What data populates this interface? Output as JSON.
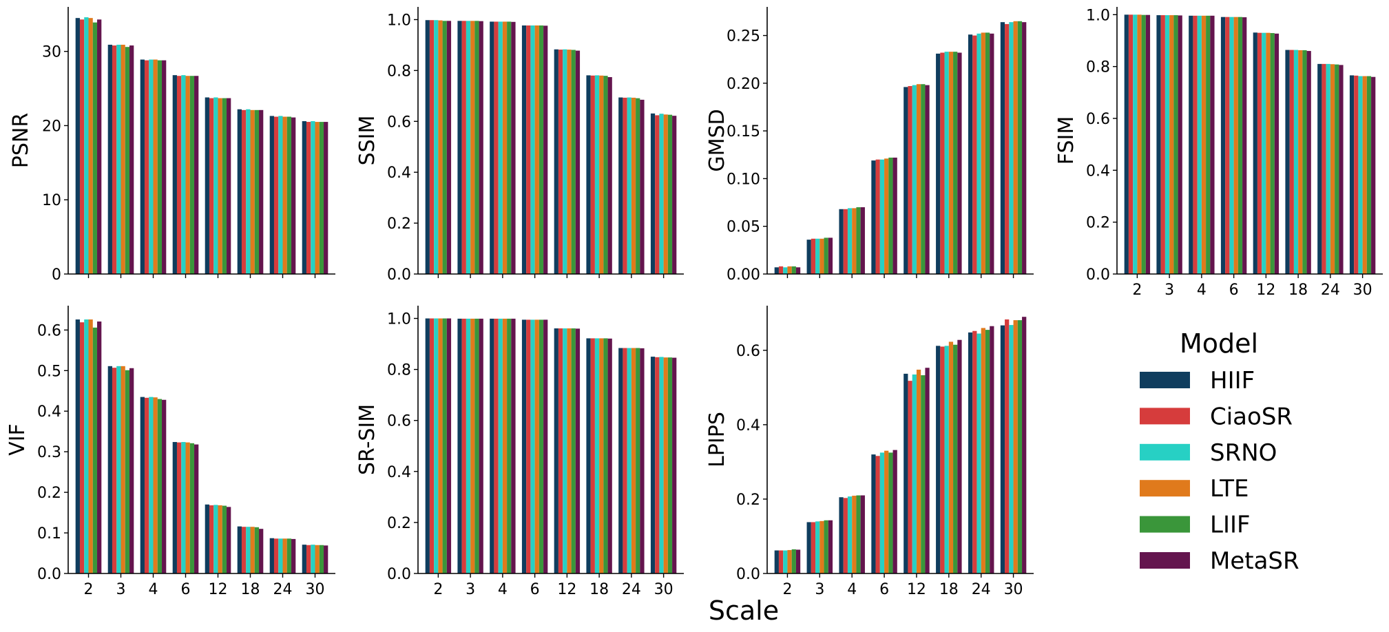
{
  "chart_data": {
    "type": "bar",
    "xlabel": "Scale",
    "categories": [
      "2",
      "3",
      "4",
      "6",
      "12",
      "18",
      "24",
      "30"
    ],
    "legend": {
      "title": "Model",
      "placement": "lower-right",
      "entries": [
        {
          "name": "HIIF",
          "color": "#0f3d5e"
        },
        {
          "name": "CiaoSR",
          "color": "#d63c3c"
        },
        {
          "name": "SRNO",
          "color": "#27d0c4"
        },
        {
          "name": "LTE",
          "color": "#e07a1c"
        },
        {
          "name": "LIIF",
          "color": "#3a963a"
        },
        {
          "name": "MetaSR",
          "color": "#64154e"
        }
      ]
    },
    "panels": [
      {
        "ylabel": "PSNR",
        "ylim": [
          0,
          36
        ],
        "yticks": [
          "0",
          "10",
          "20",
          "30"
        ],
        "ytick_values": [
          0,
          10,
          20,
          30
        ],
        "show_xticklabels": false,
        "series": [
          {
            "name": "HIIF",
            "values": [
              34.5,
              30.9,
              28.9,
              26.8,
              23.8,
              22.2,
              21.3,
              20.6
            ]
          },
          {
            "name": "CiaoSR",
            "values": [
              34.3,
              30.8,
              28.8,
              26.7,
              23.7,
              22.1,
              21.2,
              20.5
            ]
          },
          {
            "name": "SRNO",
            "values": [
              34.6,
              30.9,
              28.9,
              26.8,
              23.8,
              22.2,
              21.3,
              20.6
            ]
          },
          {
            "name": "LTE",
            "values": [
              34.5,
              30.9,
              28.9,
              26.7,
              23.7,
              22.1,
              21.2,
              20.5
            ]
          },
          {
            "name": "LIIF",
            "values": [
              33.9,
              30.6,
              28.8,
              26.7,
              23.7,
              22.1,
              21.2,
              20.5
            ]
          },
          {
            "name": "MetaSR",
            "values": [
              34.3,
              30.8,
              28.8,
              26.7,
              23.7,
              22.1,
              21.1,
              20.5
            ]
          }
        ]
      },
      {
        "ylabel": "SSIM",
        "ylim": [
          0,
          1.05
        ],
        "yticks": [
          "0.0",
          "0.2",
          "0.4",
          "0.6",
          "0.8",
          "1.0"
        ],
        "ytick_values": [
          0,
          0.2,
          0.4,
          0.6,
          0.8,
          1.0
        ],
        "show_xticklabels": false,
        "series": [
          {
            "name": "HIIF",
            "values": [
              0.998,
              0.995,
              0.992,
              0.977,
              0.883,
              0.781,
              0.694,
              0.631
            ]
          },
          {
            "name": "CiaoSR",
            "values": [
              0.998,
              0.995,
              0.992,
              0.977,
              0.882,
              0.78,
              0.693,
              0.624
            ]
          },
          {
            "name": "SRNO",
            "values": [
              0.998,
              0.995,
              0.992,
              0.977,
              0.883,
              0.781,
              0.694,
              0.63
            ]
          },
          {
            "name": "LTE",
            "values": [
              0.997,
              0.995,
              0.992,
              0.977,
              0.882,
              0.78,
              0.693,
              0.627
            ]
          },
          {
            "name": "LIIF",
            "values": [
              0.995,
              0.995,
              0.992,
              0.977,
              0.881,
              0.779,
              0.691,
              0.626
            ]
          },
          {
            "name": "MetaSR",
            "values": [
              0.995,
              0.994,
              0.991,
              0.976,
              0.878,
              0.774,
              0.685,
              0.622
            ]
          }
        ]
      },
      {
        "ylabel": "GMSD",
        "ylim": [
          0,
          0.28
        ],
        "yticks": [
          "0.00",
          "0.05",
          "0.10",
          "0.15",
          "0.20",
          "0.25"
        ],
        "ytick_values": [
          0,
          0.05,
          0.1,
          0.15,
          0.2,
          0.25
        ],
        "show_xticklabels": false,
        "series": [
          {
            "name": "HIIF",
            "values": [
              0.007,
              0.036,
              0.068,
              0.119,
              0.196,
              0.231,
              0.251,
              0.264
            ]
          },
          {
            "name": "CiaoSR",
            "values": [
              0.008,
              0.037,
              0.068,
              0.12,
              0.197,
              0.232,
              0.25,
              0.262
            ]
          },
          {
            "name": "SRNO",
            "values": [
              0.007,
              0.037,
              0.069,
              0.12,
              0.198,
              0.233,
              0.252,
              0.264
            ]
          },
          {
            "name": "LTE",
            "values": [
              0.008,
              0.037,
              0.069,
              0.121,
              0.199,
              0.233,
              0.253,
              0.265
            ]
          },
          {
            "name": "LIIF",
            "values": [
              0.008,
              0.038,
              0.07,
              0.122,
              0.199,
              0.233,
              0.253,
              0.265
            ]
          },
          {
            "name": "MetaSR",
            "values": [
              0.007,
              0.038,
              0.07,
              0.122,
              0.198,
              0.232,
              0.252,
              0.264
            ]
          }
        ]
      },
      {
        "ylabel": "FSIM",
        "ylim": [
          0,
          1.03
        ],
        "yticks": [
          "0.0",
          "0.2",
          "0.4",
          "0.6",
          "0.8",
          "1.0"
        ],
        "ytick_values": [
          0,
          0.2,
          0.4,
          0.6,
          0.8,
          1.0
        ],
        "show_xticklabels": true,
        "series": [
          {
            "name": "HIIF",
            "values": [
              1.0,
              0.998,
              0.996,
              0.991,
              0.931,
              0.864,
              0.81,
              0.766
            ]
          },
          {
            "name": "CiaoSR",
            "values": [
              1.0,
              0.998,
              0.996,
              0.991,
              0.93,
              0.864,
              0.81,
              0.765
            ]
          },
          {
            "name": "SRNO",
            "values": [
              1.0,
              0.998,
              0.996,
              0.991,
              0.93,
              0.864,
              0.81,
              0.763
            ]
          },
          {
            "name": "LTE",
            "values": [
              1.0,
              0.998,
              0.996,
              0.991,
              0.93,
              0.863,
              0.809,
              0.763
            ]
          },
          {
            "name": "LIIF",
            "values": [
              0.999,
              0.998,
              0.996,
              0.991,
              0.929,
              0.863,
              0.808,
              0.763
            ]
          },
          {
            "name": "MetaSR",
            "values": [
              0.999,
              0.997,
              0.996,
              0.99,
              0.927,
              0.86,
              0.806,
              0.76
            ]
          }
        ]
      },
      {
        "ylabel": "VIF",
        "ylim": [
          0,
          0.66
        ],
        "yticks": [
          "0.0",
          "0.1",
          "0.2",
          "0.3",
          "0.4",
          "0.5",
          "0.6"
        ],
        "ytick_values": [
          0,
          0.1,
          0.2,
          0.3,
          0.4,
          0.5,
          0.6
        ],
        "show_xticklabels": true,
        "series": [
          {
            "name": "HIIF",
            "values": [
              0.626,
              0.511,
              0.435,
              0.324,
              0.17,
              0.116,
              0.087,
              0.071
            ]
          },
          {
            "name": "CiaoSR",
            "values": [
              0.619,
              0.507,
              0.433,
              0.323,
              0.168,
              0.115,
              0.086,
              0.07
            ]
          },
          {
            "name": "SRNO",
            "values": [
              0.626,
              0.511,
              0.435,
              0.324,
              0.169,
              0.115,
              0.086,
              0.071
            ]
          },
          {
            "name": "LTE",
            "values": [
              0.626,
              0.511,
              0.434,
              0.323,
              0.168,
              0.115,
              0.086,
              0.07
            ]
          },
          {
            "name": "LIIF",
            "values": [
              0.606,
              0.501,
              0.43,
              0.321,
              0.167,
              0.114,
              0.086,
              0.07
            ]
          },
          {
            "name": "MetaSR",
            "values": [
              0.621,
              0.506,
              0.428,
              0.318,
              0.164,
              0.11,
              0.085,
              0.069
            ]
          }
        ]
      },
      {
        "ylabel": "SR-SIM",
        "ylim": [
          0,
          1.05
        ],
        "yticks": [
          "0.0",
          "0.2",
          "0.4",
          "0.6",
          "0.8",
          "1.0"
        ],
        "ytick_values": [
          0,
          0.2,
          0.4,
          0.6,
          0.8,
          1.0
        ],
        "show_xticklabels": true,
        "series": [
          {
            "name": "HIIF",
            "values": [
              1.0,
              0.999,
              0.999,
              0.995,
              0.961,
              0.922,
              0.884,
              0.85
            ]
          },
          {
            "name": "CiaoSR",
            "values": [
              1.0,
              0.999,
              0.999,
              0.995,
              0.961,
              0.922,
              0.884,
              0.848
            ]
          },
          {
            "name": "SRNO",
            "values": [
              1.0,
              0.999,
              0.999,
              0.995,
              0.961,
              0.922,
              0.884,
              0.849
            ]
          },
          {
            "name": "LTE",
            "values": [
              1.0,
              0.999,
              0.999,
              0.995,
              0.961,
              0.922,
              0.884,
              0.847
            ]
          },
          {
            "name": "LIIF",
            "values": [
              1.0,
              0.999,
              0.999,
              0.995,
              0.961,
              0.922,
              0.884,
              0.847
            ]
          },
          {
            "name": "MetaSR",
            "values": [
              1.0,
              0.999,
              0.999,
              0.995,
              0.96,
              0.921,
              0.883,
              0.846
            ]
          }
        ]
      },
      {
        "ylabel": "LPIPS",
        "ylim": [
          0,
          0.72
        ],
        "yticks": [
          "0.0",
          "0.2",
          "0.4",
          "0.6"
        ],
        "ytick_values": [
          0,
          0.2,
          0.4,
          0.6
        ],
        "show_xticklabels": true,
        "series": [
          {
            "name": "HIIF",
            "values": [
              0.062,
              0.138,
              0.205,
              0.32,
              0.537,
              0.612,
              0.648,
              0.667
            ]
          },
          {
            "name": "CiaoSR",
            "values": [
              0.062,
              0.138,
              0.203,
              0.316,
              0.518,
              0.61,
              0.652,
              0.683
            ]
          },
          {
            "name": "SRNO",
            "values": [
              0.062,
              0.14,
              0.207,
              0.325,
              0.535,
              0.612,
              0.645,
              0.668
            ]
          },
          {
            "name": "LTE",
            "values": [
              0.063,
              0.141,
              0.209,
              0.33,
              0.548,
              0.623,
              0.66,
              0.681
            ]
          },
          {
            "name": "LIIF",
            "values": [
              0.065,
              0.143,
              0.21,
              0.325,
              0.533,
              0.615,
              0.655,
              0.681
            ]
          },
          {
            "name": "MetaSR",
            "values": [
              0.064,
              0.143,
              0.21,
              0.332,
              0.553,
              0.628,
              0.665,
              0.69
            ]
          }
        ]
      }
    ]
  }
}
